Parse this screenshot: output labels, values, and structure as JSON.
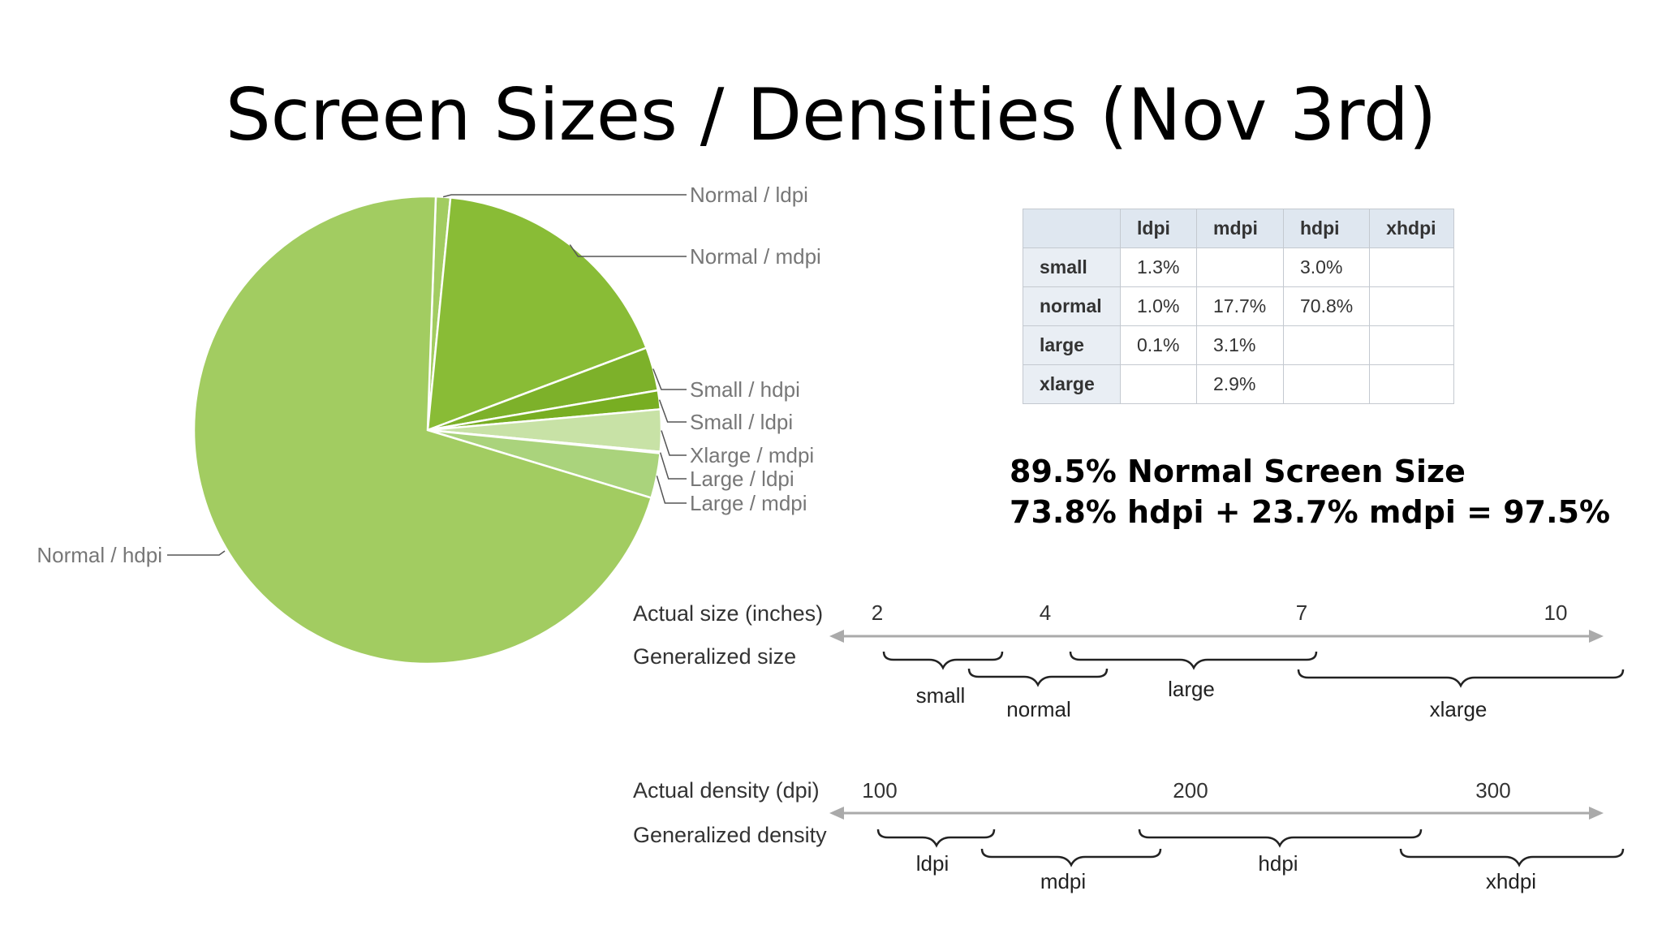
{
  "title": "Screen Sizes / Densities (Nov 3rd)",
  "colors": {
    "normal_hdpi": "#a2cc61",
    "normal_mdpi": "#89bc36",
    "small_hdpi": "#7db12a",
    "small_ldpi": "#78ae22",
    "xlarge_mdpi": "#c8e2a6",
    "large_ldpi": "#b4d68a",
    "large_mdpi": "#aad37c",
    "leader": "#555555",
    "label": "#777777",
    "scale": "#aaaaaa"
  },
  "chart_data": [
    {
      "type": "pie",
      "title": "",
      "slices": [
        {
          "label": "Normal / ldpi",
          "value": 1.0
        },
        {
          "label": "Normal / mdpi",
          "value": 17.7
        },
        {
          "label": "Small / hdpi",
          "value": 3.0
        },
        {
          "label": "Small / ldpi",
          "value": 1.3
        },
        {
          "label": "Xlarge / mdpi",
          "value": 2.9
        },
        {
          "label": "Large / ldpi",
          "value": 0.1
        },
        {
          "label": "Large / mdpi",
          "value": 3.1
        },
        {
          "label": "Normal / hdpi",
          "value": 70.8
        }
      ]
    },
    {
      "type": "table",
      "columns": [
        "",
        "ldpi",
        "mdpi",
        "hdpi",
        "xhdpi"
      ],
      "rows": [
        {
          "label": "small",
          "values": [
            "1.3%",
            "",
            "3.0%",
            ""
          ]
        },
        {
          "label": "normal",
          "values": [
            "1.0%",
            "17.7%",
            "70.8%",
            ""
          ]
        },
        {
          "label": "large",
          "values": [
            "0.1%",
            "3.1%",
            "",
            ""
          ]
        },
        {
          "label": "xlarge",
          "values": [
            "",
            "2.9%",
            "",
            ""
          ]
        }
      ]
    }
  ],
  "summary": {
    "line1": "89.5% Normal Screen Size",
    "line2": "73.8% hdpi + 23.7% mdpi = 97.5%"
  },
  "size_scale": {
    "label": "Actual size (inches)",
    "generalized_label": "Generalized size",
    "ticks": [
      "2",
      "4",
      "7",
      "10"
    ],
    "groups": [
      "small",
      "normal",
      "large",
      "xlarge"
    ]
  },
  "density_scale": {
    "label": "Actual density (dpi)",
    "generalized_label": "Generalized density",
    "ticks": [
      "100",
      "200",
      "300"
    ],
    "groups": [
      "ldpi",
      "mdpi",
      "hdpi",
      "xhdpi"
    ]
  }
}
